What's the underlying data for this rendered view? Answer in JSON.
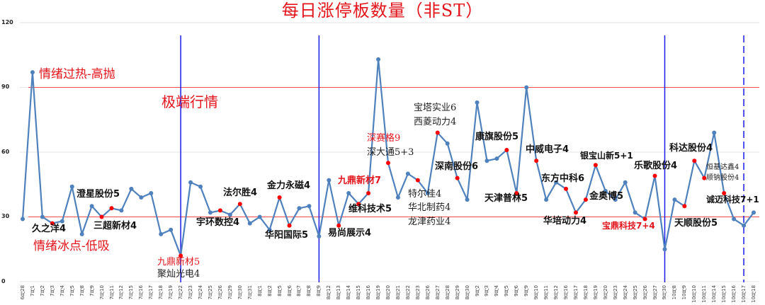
{
  "chart_data": {
    "type": "line",
    "title": "每日涨停板数量（非ST）",
    "xlabel": "",
    "ylabel": "",
    "ylim": [
      0,
      120
    ],
    "yticks": [
      0,
      30,
      60,
      90,
      120
    ],
    "grid": true,
    "legend": null,
    "categories": [
      "6月28",
      "7月1",
      "7月2",
      "7月3",
      "7月4",
      "7月5",
      "7月8",
      "7月9",
      "7月10",
      "7月11",
      "7月12",
      "7月15",
      "7月16",
      "7月17",
      "7月18",
      "7月19",
      "7月22",
      "7月23",
      "7月24",
      "7月25",
      "7月26",
      "7月29",
      "7月30",
      "7月31",
      "8月1",
      "8月2",
      "8月5",
      "8月6",
      "8月7",
      "8月8",
      "8月9",
      "8月12",
      "8月13",
      "8月14",
      "8月15",
      "8月16",
      "8月19",
      "8月20",
      "8月21",
      "8月22",
      "8月23",
      "8月26",
      "8月27",
      "8月28",
      "8月29",
      "8月30",
      "9月2",
      "9月3",
      "9月4",
      "9月5",
      "9月6",
      "9月9",
      "9月10",
      "9月11",
      "9月12",
      "9月16",
      "9月17",
      "9月18",
      "9月19",
      "9月20",
      "9月23",
      "9月24",
      "9月25",
      "9月26",
      "9月27",
      "9月30",
      "10月8",
      "10月9",
      "10月10",
      "10月11",
      "10月14",
      "10月15",
      "10月16",
      "10月17",
      "10月18"
    ],
    "series": [
      {
        "name": "涨停板数量",
        "color": "#4f81bd",
        "values": [
          29,
          97,
          30,
          27,
          28,
          44,
          22,
          35,
          30,
          34,
          33,
          43,
          39,
          41,
          22,
          24,
          12,
          46,
          44,
          32,
          33,
          31,
          36,
          27,
          30,
          24,
          39,
          26,
          34,
          35,
          21,
          47,
          26,
          41,
          36,
          41,
          103,
          55,
          39,
          50,
          47,
          41,
          69,
          64,
          48,
          38,
          83,
          56,
          57,
          61,
          41,
          90,
          56,
          38,
          46,
          43,
          32,
          38,
          54,
          42,
          38,
          46,
          32,
          29,
          49,
          15,
          38,
          35,
          56,
          48,
          69,
          41,
          29,
          26,
          32
        ],
        "highlighted_indices": [
          3,
          8,
          9,
          16,
          20,
          22,
          26,
          27,
          32,
          34,
          35,
          37,
          40,
          42,
          44,
          49,
          50,
          52,
          55,
          56,
          57,
          58,
          63,
          64,
          67,
          68,
          69,
          71
        ],
        "highlight_color": "#ff0000"
      }
    ],
    "reference_lines": [
      {
        "y": 90,
        "color": "#ff4d4d",
        "label": "情绪过热-高抛"
      },
      {
        "y": 30,
        "color": "#ff4d4d",
        "label": "情绪冰点-低吸"
      }
    ],
    "vertical_lines": [
      {
        "category": "7月22",
        "style": "solid",
        "color": "#1a1ae6"
      },
      {
        "category": "8月9",
        "style": "solid",
        "color": "#1a1ae6"
      },
      {
        "category": "9月30",
        "style": "solid",
        "color": "#1a1ae6"
      },
      {
        "category": "10月17",
        "style": "dashed",
        "color": "#1a1ae6"
      }
    ],
    "annotations": [
      {
        "text": "情绪过热-高抛",
        "style": "big"
      },
      {
        "text": "极端行情",
        "style": "huge"
      },
      {
        "text": "情绪冰点-低吸",
        "style": "big"
      },
      {
        "text": "久之洋4",
        "category": "7月3"
      },
      {
        "text": "澄星股份5",
        "category": "7月11"
      },
      {
        "text": "三超新材4",
        "category": "7月10"
      },
      {
        "text": "九鼎新材5",
        "category": "7月22",
        "color": "red"
      },
      {
        "text": "聚灿光电4",
        "category": "7月22"
      },
      {
        "text": "法尔胜4",
        "category": "7月30"
      },
      {
        "text": "宇环数控4",
        "category": "7月26"
      },
      {
        "text": "金力永磁4",
        "category": "8月5"
      },
      {
        "text": "华阳国际5",
        "category": "8月6"
      },
      {
        "text": "易尚展示4",
        "category": "8月13"
      },
      {
        "text": "九鼎新材7",
        "category": "8月16",
        "color": "red"
      },
      {
        "text": "维科技术5",
        "category": "8月15"
      },
      {
        "text": "深赛格9",
        "category": "8月20",
        "color": "red"
      },
      {
        "text": "深大通5+3",
        "category": "8月20"
      },
      {
        "text": "特尔佳4",
        "category": "8月23"
      },
      {
        "text": "华北制药4",
        "category": "8月23"
      },
      {
        "text": "龙津药业4",
        "category": "8月23"
      },
      {
        "text": "宝塔实业6",
        "category": "8月27"
      },
      {
        "text": "西菱动力4",
        "category": "8月27"
      },
      {
        "text": "深南股份6",
        "category": "8月29"
      },
      {
        "text": "康旗股份5",
        "category": "9月5"
      },
      {
        "text": "天津普林5",
        "category": "9月6"
      },
      {
        "text": "中威电子4",
        "category": "9月10"
      },
      {
        "text": "东方中科6",
        "category": "9月16"
      },
      {
        "text": "华培动力4",
        "category": "9月17"
      },
      {
        "text": "金奥博5",
        "category": "9月18"
      },
      {
        "text": "银宝山新5+1",
        "category": "9月19"
      },
      {
        "text": "宝鼎科技7+4",
        "category": "9月26",
        "color": "red"
      },
      {
        "text": "乐歌股份4",
        "category": "9月27"
      },
      {
        "text": "天顺股份5",
        "category": "10月9"
      },
      {
        "text": "科达股份4",
        "category": "10月10"
      },
      {
        "text": "恒基达鑫4",
        "category": "10月11"
      },
      {
        "text": "顺钠股份4",
        "category": "10月11"
      },
      {
        "text": "诚迈科技7+1",
        "category": "10月15"
      }
    ]
  },
  "labels": {
    "title": "每日涨停板数量（非ST）",
    "hot_zone": "情绪过热-高抛",
    "cold_zone": "情绪冰点-低吸",
    "extreme": "极端行情",
    "a_jiuzhiyang": "久之洋4",
    "a_chengxing": "澄星股份5",
    "a_sanchao": "三超新材4",
    "a_jiuding5": "九鼎新材5",
    "a_jucan": "聚灿光电4",
    "a_faersheng": "法尔胜4",
    "a_yuhuan": "宇环数控4",
    "a_jinli": "金力永磁4",
    "a_huayang": "华阳国际5",
    "a_yishang": "易尚展示4",
    "a_jiuding7": "九鼎新材7",
    "a_weike": "维科技术5",
    "a_shensaige": "深赛格9",
    "a_shendatong": "深大通5+3",
    "a_teerjia": "特尔佳4",
    "a_huabei": "华北制药4",
    "a_longjin": "龙津药业4",
    "a_baota": "宝塔实业6",
    "a_xiling": "西菱动力4",
    "a_shennan": "深南股份6",
    "a_kangqi": "康旗股份5",
    "a_tianjin": "天津普林5",
    "a_zhongwei": "中威电子4",
    "a_dongfang": "东方中科6",
    "a_huapei": "华培动力4",
    "a_jinaobo": "金奥博5",
    "a_yinbao": "银宝山新5+1",
    "a_baoding": "宝鼎科技7+4",
    "a_lege": "乐歌股份4",
    "a_tianshun": "天顺股份5",
    "a_keda": "科达股份4",
    "a_hengji": "恒基达鑫4",
    "a_shunna": "顺钠股份4",
    "a_chengmai": "诚迈科技7+1"
  }
}
